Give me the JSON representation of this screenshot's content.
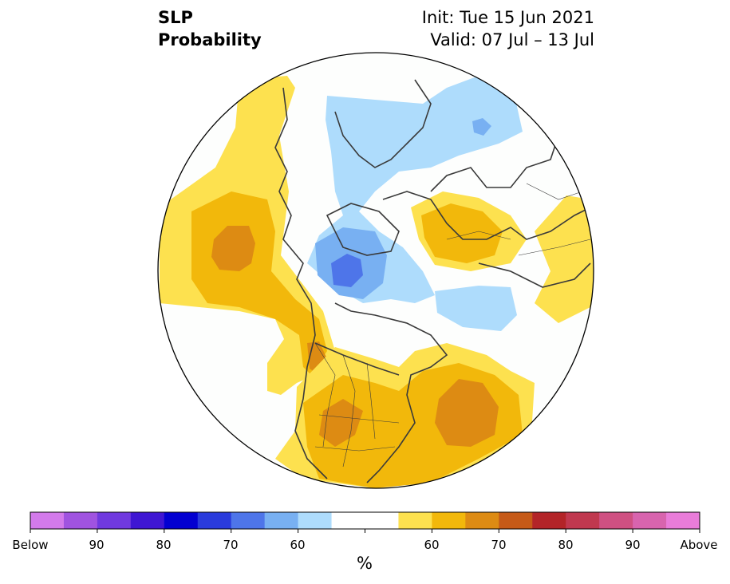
{
  "title": {
    "left_line1": "SLP",
    "left_line2": "Probability",
    "right_line1": "Init: Tue 15 Jun 2021",
    "right_line2": "Valid: 07 Jul – 13 Jul"
  },
  "colors": {
    "below": [
      "#d37aeb",
      "#a053e0",
      "#7039df",
      "#3f16d3",
      "#0300d1",
      "#2a3bdc",
      "#4e75e9",
      "#78b0f2",
      "#aedcfc"
    ],
    "neutral": "#ffffff",
    "above": [
      "#fde14f",
      "#f2b80b",
      "#dd8b13",
      "#c65a18",
      "#b32428",
      "#c0384f",
      "#cf5082",
      "#d864ae",
      "#e97cd9"
    ],
    "land_outline": "#3a3a3a",
    "map_background": "#fdfefd"
  },
  "colorbar": {
    "unit": "%",
    "labels": [
      "Below",
      "90",
      "80",
      "70",
      "60",
      "60",
      "70",
      "80",
      "90",
      "Above"
    ]
  }
}
